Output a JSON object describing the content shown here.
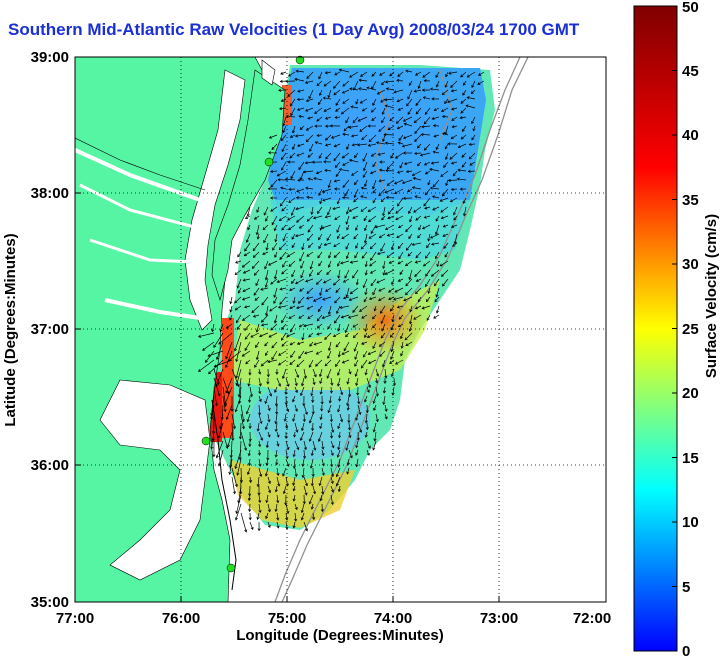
{
  "title": "Southern Mid-Atlantic Raw Velocities (1 Day Avg) 2008/03/24 1700 GMT",
  "xlabel": "Longitude (Degrees:Minutes)",
  "ylabel": "Latitude (Degrees:Minutes)",
  "colorbar_label": "Surface Velocity (cm/s)",
  "x_ticks": [
    "77:00",
    "76:00",
    "75:00",
    "74:00",
    "73:00",
    "72:00"
  ],
  "y_ticks": [
    "39:00",
    "38:00",
    "37:00",
    "36:00",
    "35:00"
  ],
  "colorbar_ticks": [
    "0",
    "5",
    "10",
    "15",
    "20",
    "25",
    "30",
    "35",
    "40",
    "45",
    "50"
  ],
  "colors": {
    "land": "#55f5a3",
    "title": "#1a2fd6",
    "station": "#22dd22"
  },
  "chart_data": {
    "type": "heatmap",
    "title": "Southern Mid-Atlantic Raw Velocities (1 Day Avg) 2008/03/24 1700 GMT",
    "xlabel": "Longitude (Degrees:Minutes)",
    "ylabel": "Latitude (Degrees:Minutes)",
    "xlim": [
      -77,
      -72
    ],
    "ylim": [
      35,
      39
    ],
    "colorbar": {
      "label": "Surface Velocity (cm/s)",
      "range": [
        0,
        50
      ],
      "colormap": "jet"
    },
    "grid": "dotted",
    "stations": [
      {
        "lon": -74.9,
        "lat": 38.97
      },
      {
        "lon": -75.15,
        "lat": 38.22
      },
      {
        "lon": -75.72,
        "lat": 36.18
      },
      {
        "lon": -75.52,
        "lat": 35.25
      }
    ]
  }
}
